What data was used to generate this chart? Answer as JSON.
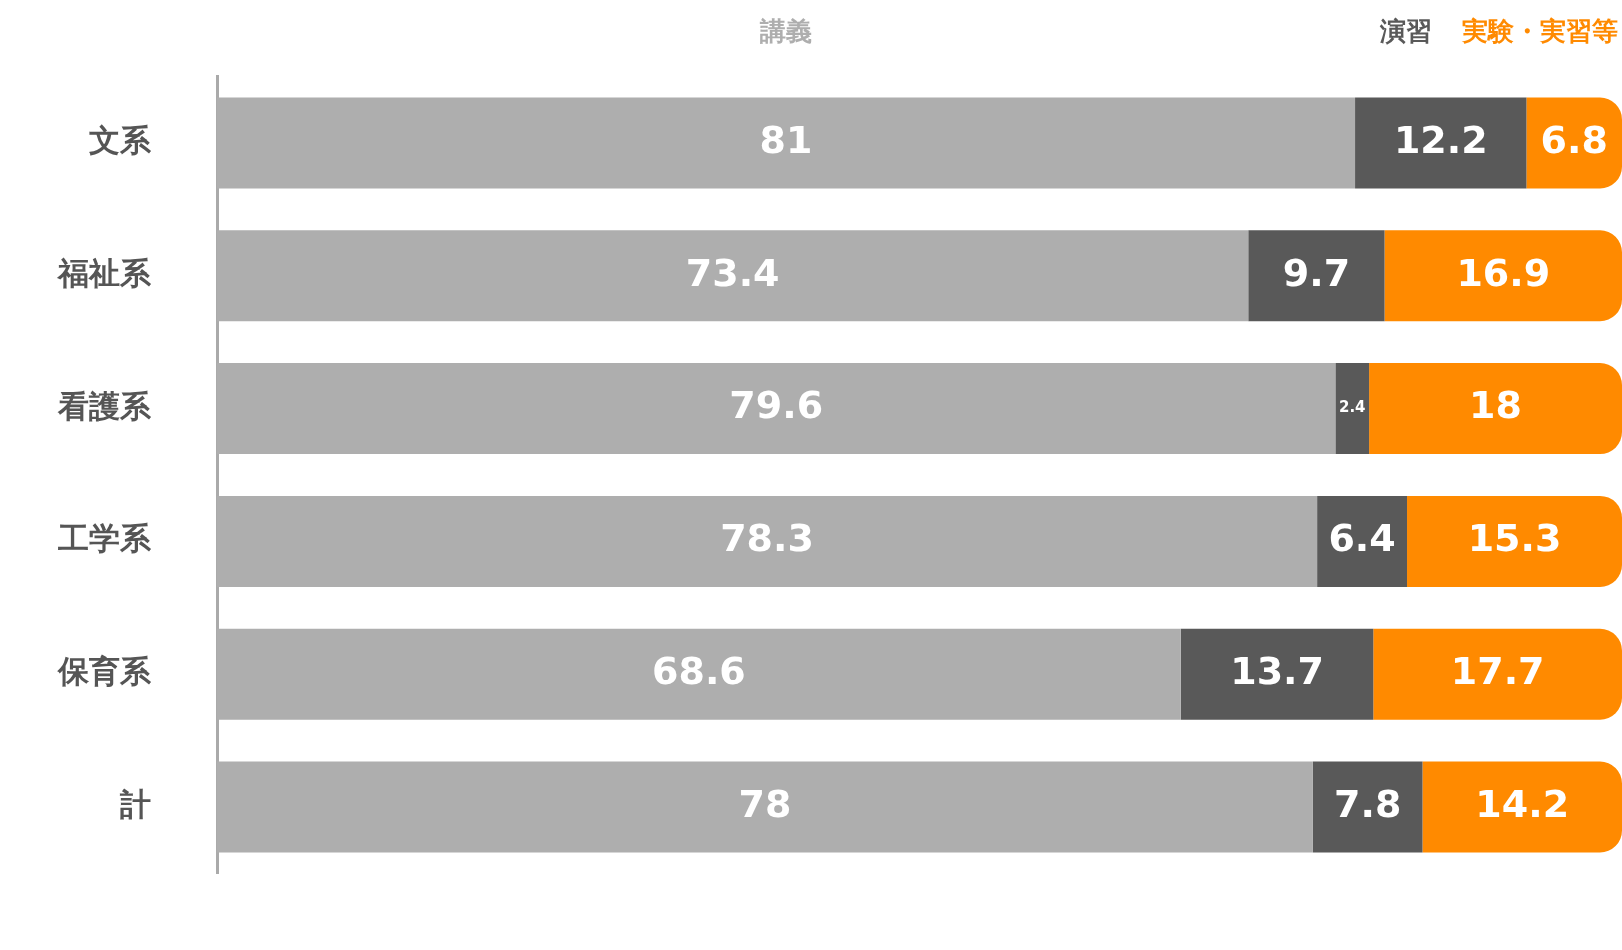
{
  "chart_data": {
    "type": "bar",
    "orientation": "horizontal",
    "stacked": true,
    "data_labels": true,
    "legend": "top",
    "categories": [
      "文系",
      "福祉系",
      "看護系",
      "工学系",
      "保育系",
      "計"
    ],
    "series": [
      {
        "name": "講義",
        "color": "#aeaeae",
        "values": [
          81,
          73.4,
          79.6,
          78.3,
          68.6,
          78
        ]
      },
      {
        "name": "演習",
        "color": "#595959",
        "values": [
          12.2,
          9.7,
          2.4,
          6.4,
          13.7,
          7.8
        ]
      },
      {
        "name": "実験・実習等",
        "color": "#ff8a00",
        "values": [
          6.8,
          16.9,
          18,
          15.3,
          17.7,
          14.2
        ]
      }
    ]
  }
}
